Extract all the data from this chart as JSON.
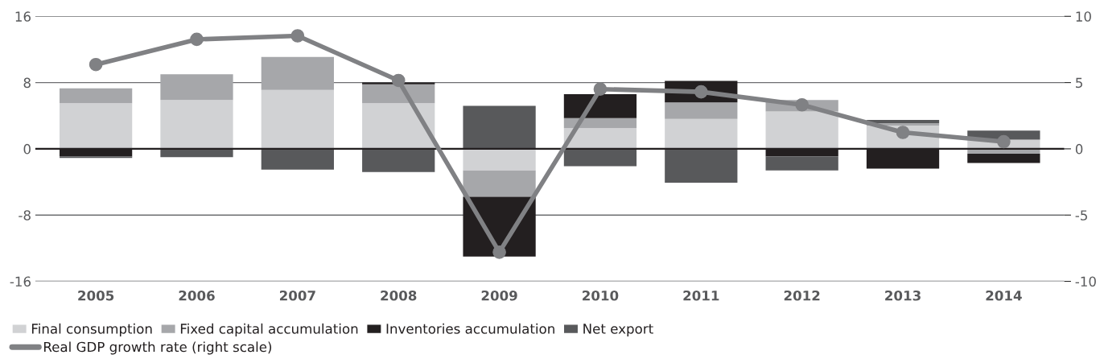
{
  "chart_data": {
    "type": "bar",
    "stacked": true,
    "categories": [
      "2005",
      "2006",
      "2007",
      "2008",
      "2009",
      "2010",
      "2011",
      "2012",
      "2013",
      "2014"
    ],
    "series": [
      {
        "name": "Final consumption",
        "color": "#d1d2d4",
        "values": [
          5.5,
          5.9,
          7.1,
          5.5,
          -2.6,
          2.5,
          3.6,
          4.5,
          2.8,
          1.1
        ]
      },
      {
        "name": "Fixed capital accumulation",
        "color": "#a6a7aa",
        "values": [
          1.8,
          3.1,
          4.0,
          2.3,
          -3.2,
          1.2,
          2.0,
          1.4,
          0.3,
          -0.6
        ]
      },
      {
        "name": "Inventories accumulation",
        "color": "#231f20",
        "values": [
          -0.9,
          null,
          null,
          0.2,
          -7.2,
          2.9,
          2.6,
          -0.9,
          -2.4,
          -1.1
        ]
      },
      {
        "name": "Net export",
        "color": "#58595b",
        "values": [
          -0.2,
          -1.0,
          -2.5,
          -2.8,
          5.2,
          -2.1,
          -4.1,
          -1.7,
          0.4,
          1.1
        ]
      },
      {
        "name": "Real GDP growth rate (right scale)",
        "type": "line",
        "axis": "y2",
        "color": "#808184",
        "marker": "circle",
        "values": [
          6.36,
          8.26,
          8.53,
          5.16,
          -7.8,
          4.51,
          4.3,
          3.32,
          1.24,
          0.54
        ]
      }
    ],
    "ylim": [
      -16,
      16
    ],
    "yticks": [
      -16,
      -8,
      0,
      8,
      16
    ],
    "y2lim": [
      -10,
      10
    ],
    "y2ticks": [
      -10,
      -5,
      0,
      5,
      10
    ],
    "grid": "y",
    "legend": "bottom left"
  }
}
